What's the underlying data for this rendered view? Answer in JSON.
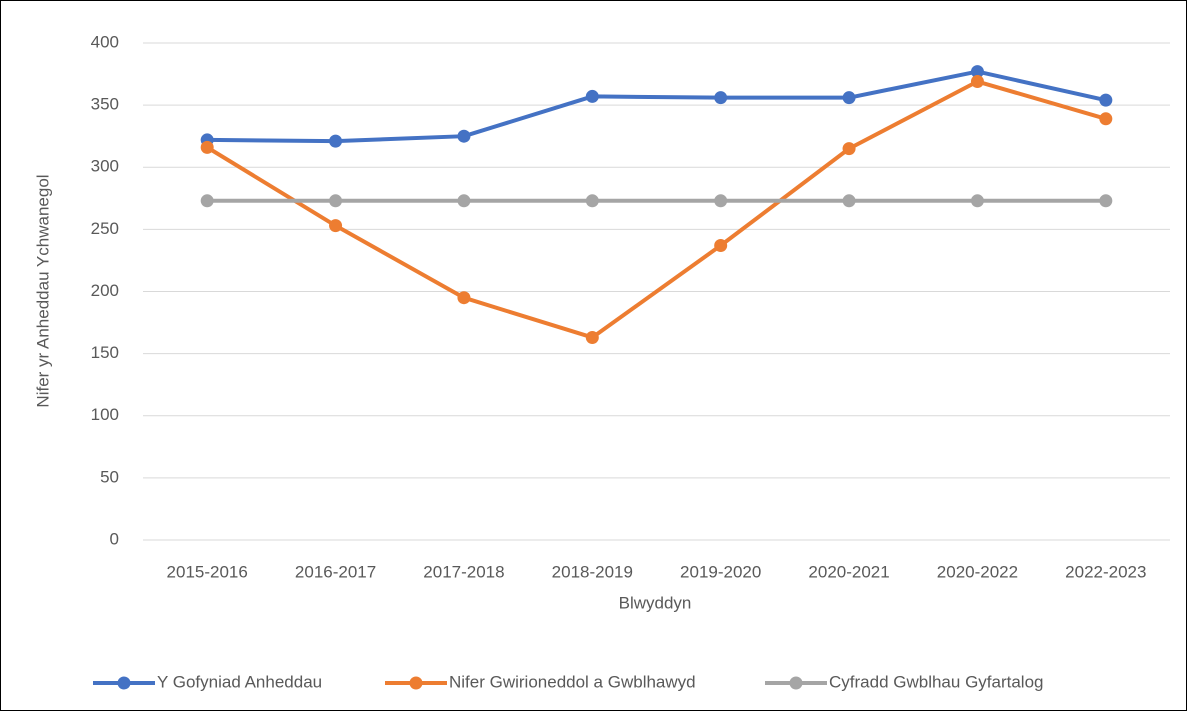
{
  "chart_data": {
    "type": "line",
    "x_label": "Blwyddyn",
    "y_label": "Nifer yr Anheddau Ychwanegol",
    "categories": [
      "2015-2016",
      "2016-2017",
      "2017-2018",
      "2018-2019",
      "2019-2020",
      "2020-2021",
      "2020-2022",
      "2022-2023"
    ],
    "series": [
      {
        "name": "Y Gofyniad Anheddau",
        "color": "#4472c4",
        "values": [
          322,
          321,
          325,
          357,
          356,
          356,
          377,
          354
        ]
      },
      {
        "name": "Nifer Gwirioneddol a Gwblhawyd",
        "color": "#ed7d31",
        "values": [
          316,
          253,
          195,
          163,
          237,
          315,
          369,
          339
        ]
      },
      {
        "name": "Cyfradd Gwblhau Gyfartalog",
        "color": "#a5a5a5",
        "values": [
          273,
          273,
          273,
          273,
          273,
          273,
          273,
          273
        ]
      }
    ],
    "ylim": [
      0,
      400
    ],
    "yticks": [
      0,
      50,
      100,
      150,
      200,
      250,
      300,
      350,
      400
    ],
    "grid": true,
    "legend": "bottom"
  }
}
